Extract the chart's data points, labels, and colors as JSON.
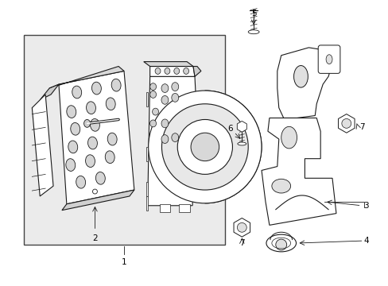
{
  "bg_color": "#ffffff",
  "box_bg": "#ebebeb",
  "line_color": "#1a1a1a",
  "label_color": "#000000",
  "fig_width": 4.89,
  "fig_height": 3.6,
  "dpi": 100
}
